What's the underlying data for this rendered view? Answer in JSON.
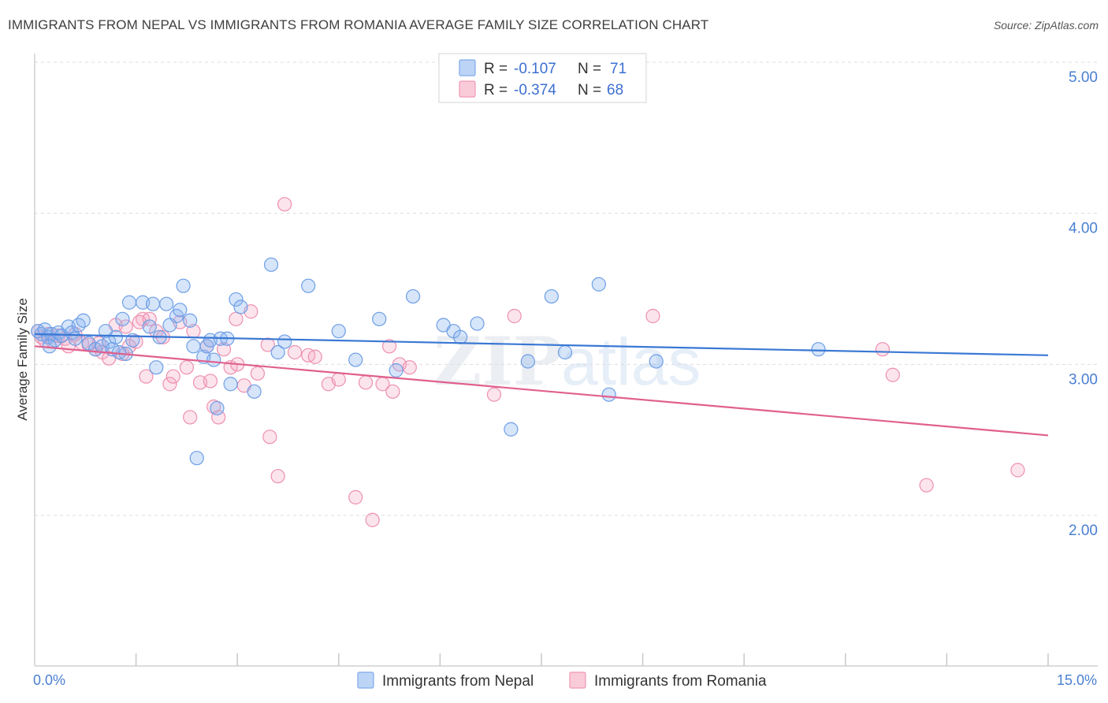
{
  "title": "IMMIGRANTS FROM NEPAL VS IMMIGRANTS FROM ROMANIA AVERAGE FAMILY SIZE CORRELATION CHART",
  "source": "Source: ZipAtlas.com",
  "colors": {
    "nepal": "#8ab4f0",
    "nepal_line": "#3a78d4",
    "romania": "#f4a7c0",
    "romania_line": "#e0608e",
    "tick_label": "#4a7fd1"
  },
  "legend_top": [
    {
      "r_label": "R =",
      "r_value": "-0.107",
      "n_label": "N =",
      "n_value": "71"
    },
    {
      "r_label": "R =",
      "r_value": "-0.374",
      "n_label": "N =",
      "n_value": "68"
    }
  ],
  "chart_data": {
    "type": "scatter",
    "title": "IMMIGRANTS FROM NEPAL VS IMMIGRANTS FROM ROMANIA AVERAGE FAMILY SIZE CORRELATION CHART",
    "xlabel": "",
    "ylabel": "Average Family Size",
    "xlim": [
      0,
      15
    ],
    "ylim": [
      1,
      5.1
    ],
    "x_tick_labels": [
      "0.0%",
      "15.0%"
    ],
    "y_ticks": [
      2,
      3,
      4,
      5
    ],
    "y_tick_labels": [
      "2.00",
      "3.00",
      "4.00",
      "5.00"
    ],
    "legend": "bottom-center",
    "series": [
      {
        "name": "Immigrants from Nepal",
        "trend": [
          [
            0,
            3.2
          ],
          [
            15,
            3.06
          ]
        ],
        "points": [
          [
            0.05,
            3.22
          ],
          [
            0.1,
            3.2
          ],
          [
            0.15,
            3.23
          ],
          [
            0.2,
            3.18
          ],
          [
            0.25,
            3.2
          ],
          [
            0.3,
            3.16
          ],
          [
            0.35,
            3.21
          ],
          [
            0.4,
            3.19
          ],
          [
            0.5,
            3.25
          ],
          [
            0.55,
            3.21
          ],
          [
            0.65,
            3.26
          ],
          [
            0.72,
            3.29
          ],
          [
            0.8,
            3.14
          ],
          [
            0.9,
            3.1
          ],
          [
            1.0,
            3.12
          ],
          [
            1.05,
            3.22
          ],
          [
            1.1,
            3.15
          ],
          [
            1.15,
            3.1
          ],
          [
            1.2,
            3.18
          ],
          [
            1.3,
            3.3
          ],
          [
            1.35,
            3.07
          ],
          [
            1.4,
            3.41
          ],
          [
            1.45,
            3.16
          ],
          [
            1.6,
            3.41
          ],
          [
            1.7,
            3.25
          ],
          [
            1.75,
            3.4
          ],
          [
            1.8,
            2.98
          ],
          [
            1.85,
            3.18
          ],
          [
            1.95,
            3.4
          ],
          [
            2.0,
            3.26
          ],
          [
            2.1,
            3.32
          ],
          [
            2.15,
            3.36
          ],
          [
            2.2,
            3.52
          ],
          [
            2.3,
            3.29
          ],
          [
            2.35,
            3.12
          ],
          [
            2.4,
            2.38
          ],
          [
            2.5,
            3.05
          ],
          [
            2.55,
            3.12
          ],
          [
            2.6,
            3.16
          ],
          [
            2.65,
            3.03
          ],
          [
            2.7,
            2.71
          ],
          [
            2.75,
            3.17
          ],
          [
            2.85,
            3.17
          ],
          [
            2.9,
            2.87
          ],
          [
            2.98,
            3.43
          ],
          [
            3.05,
            3.38
          ],
          [
            3.25,
            2.82
          ],
          [
            3.5,
            3.66
          ],
          [
            3.6,
            3.08
          ],
          [
            3.7,
            3.15
          ],
          [
            4.05,
            3.52
          ],
          [
            4.5,
            3.22
          ],
          [
            4.75,
            3.03
          ],
          [
            5.1,
            3.3
          ],
          [
            5.35,
            2.96
          ],
          [
            5.6,
            3.45
          ],
          [
            6.05,
            3.26
          ],
          [
            6.2,
            3.22
          ],
          [
            6.3,
            3.18
          ],
          [
            6.55,
            3.27
          ],
          [
            7.05,
            2.57
          ],
          [
            7.3,
            3.02
          ],
          [
            7.65,
            3.45
          ],
          [
            7.85,
            3.08
          ],
          [
            8.35,
            3.53
          ],
          [
            8.5,
            2.8
          ],
          [
            9.2,
            3.02
          ],
          [
            11.6,
            3.1
          ],
          [
            0.22,
            3.12
          ],
          [
            0.6,
            3.17
          ],
          [
            1.25,
            3.08
          ]
        ]
      },
      {
        "name": "Immigrants from Romania",
        "trend": [
          [
            0,
            3.12
          ],
          [
            15,
            2.53
          ]
        ],
        "points": [
          [
            0.05,
            3.22
          ],
          [
            0.1,
            3.18
          ],
          [
            0.2,
            3.2
          ],
          [
            0.28,
            3.15
          ],
          [
            0.35,
            3.19
          ],
          [
            0.45,
            3.17
          ],
          [
            0.6,
            3.2
          ],
          [
            0.7,
            3.14
          ],
          [
            0.8,
            3.13
          ],
          [
            0.9,
            3.1
          ],
          [
            1.0,
            3.08
          ],
          [
            1.1,
            3.04
          ],
          [
            1.2,
            3.26
          ],
          [
            1.3,
            3.07
          ],
          [
            1.35,
            3.25
          ],
          [
            1.4,
            3.12
          ],
          [
            1.5,
            3.15
          ],
          [
            1.6,
            3.3
          ],
          [
            1.65,
            2.92
          ],
          [
            1.7,
            3.3
          ],
          [
            1.8,
            3.22
          ],
          [
            1.9,
            3.18
          ],
          [
            2.0,
            2.87
          ],
          [
            2.05,
            2.92
          ],
          [
            2.15,
            3.28
          ],
          [
            2.25,
            2.98
          ],
          [
            2.3,
            2.65
          ],
          [
            2.35,
            3.22
          ],
          [
            2.45,
            2.88
          ],
          [
            2.55,
            3.12
          ],
          [
            2.65,
            2.72
          ],
          [
            2.72,
            2.65
          ],
          [
            2.8,
            3.1
          ],
          [
            2.9,
            2.98
          ],
          [
            2.98,
            3.3
          ],
          [
            3.0,
            3.0
          ],
          [
            3.1,
            2.86
          ],
          [
            3.2,
            3.35
          ],
          [
            3.3,
            2.94
          ],
          [
            3.45,
            3.13
          ],
          [
            3.48,
            2.52
          ],
          [
            3.6,
            2.26
          ],
          [
            3.7,
            4.06
          ],
          [
            3.85,
            3.08
          ],
          [
            4.05,
            3.06
          ],
          [
            4.15,
            3.05
          ],
          [
            4.35,
            2.87
          ],
          [
            4.5,
            2.9
          ],
          [
            4.75,
            2.12
          ],
          [
            4.9,
            2.88
          ],
          [
            5.0,
            1.97
          ],
          [
            5.15,
            2.87
          ],
          [
            5.25,
            3.12
          ],
          [
            5.3,
            2.82
          ],
          [
            5.4,
            3.0
          ],
          [
            5.55,
            2.98
          ],
          [
            6.8,
            2.8
          ],
          [
            7.1,
            3.32
          ],
          [
            9.15,
            3.32
          ],
          [
            12.55,
            3.1
          ],
          [
            12.7,
            2.93
          ],
          [
            13.2,
            2.2
          ],
          [
            14.55,
            2.3
          ],
          [
            0.15,
            3.16
          ],
          [
            0.5,
            3.12
          ],
          [
            0.95,
            3.14
          ],
          [
            1.55,
            3.28
          ],
          [
            2.6,
            2.89
          ]
        ]
      }
    ]
  }
}
